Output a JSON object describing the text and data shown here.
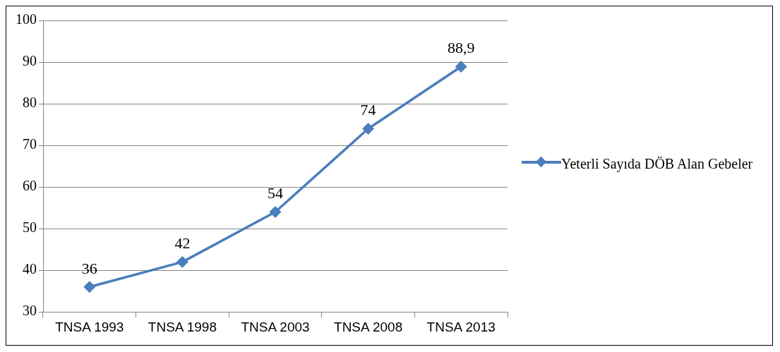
{
  "chart_data": {
    "type": "line",
    "categories": [
      "TNSA 1993",
      "TNSA 1998",
      "TNSA 2003",
      "TNSA 2008",
      "TNSA 2013"
    ],
    "series": [
      {
        "name": "Yeterli Sayıda DÖB Alan Gebeler",
        "color": "#4a7ebb",
        "values": [
          36,
          42,
          54,
          74,
          88.9
        ],
        "value_labels": [
          "36",
          "42",
          "54",
          "74",
          "88,9"
        ]
      }
    ],
    "ylim": [
      30,
      100
    ],
    "yticks": [
      30,
      40,
      50,
      60,
      70,
      80,
      90,
      100
    ],
    "grid": "y",
    "legend": "right",
    "marker": "diamond",
    "line_style": "solid"
  }
}
